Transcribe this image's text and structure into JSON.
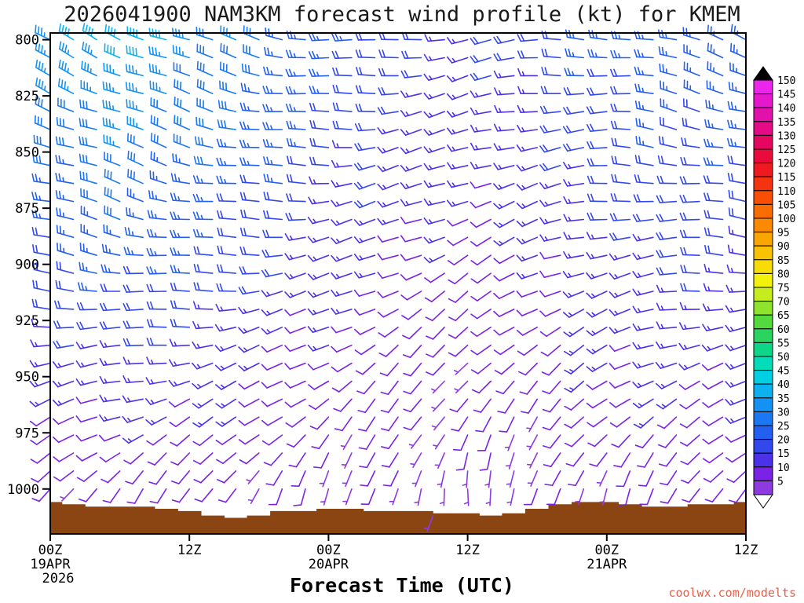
{
  "chart_data": {
    "type": "wind-barb-time-height",
    "title": "2026041900 NAM3KM forecast wind profile (kt) for KMEM",
    "xlabel": "Forecast Time (UTC)",
    "watermark": "coolwx.com/modelts",
    "units": "kt",
    "pressure_range_hpa": [
      797,
      1020
    ],
    "time_range_hours": [
      0,
      60
    ],
    "y_ticks": [
      800,
      825,
      850,
      875,
      900,
      925,
      950,
      975,
      1000
    ],
    "x_ticks": [
      {
        "hour": 0,
        "label": "00Z",
        "date": "19APR",
        "year": "2026"
      },
      {
        "hour": 12,
        "label": "12Z"
      },
      {
        "hour": 24,
        "label": "00Z",
        "date": "20APR"
      },
      {
        "hour": 36,
        "label": "12Z"
      },
      {
        "hour": 48,
        "label": "00Z",
        "date": "21APR"
      },
      {
        "hour": 60,
        "label": "12Z"
      }
    ],
    "colorbar": {
      "units": "kt",
      "levels": [
        5,
        10,
        15,
        20,
        25,
        30,
        35,
        40,
        45,
        50,
        55,
        60,
        65,
        70,
        75,
        80,
        85,
        90,
        95,
        100,
        105,
        110,
        115,
        120,
        125,
        130,
        135,
        140,
        145,
        150
      ],
      "colors": [
        "#8d3ae0",
        "#7a22e6",
        "#4b32e8",
        "#3348ec",
        "#2360f0",
        "#1b78f2",
        "#1492f4",
        "#0cb2f0",
        "#00cfe4",
        "#00ddb8",
        "#0ed689",
        "#2ad45e",
        "#55da3e",
        "#8ee32c",
        "#c6ec1d",
        "#f2f20d",
        "#f7dd05",
        "#f9c303",
        "#faa602",
        "#fa8a01",
        "#f96c01",
        "#f84f04",
        "#f43310",
        "#ee1a1f",
        "#e80b3c",
        "#e5075f",
        "#e30b86",
        "#e311ac",
        "#e518cd",
        "#ec25ec"
      ],
      "over_arrow_color": "#000000",
      "under_arrow_color": "#ffffff"
    },
    "grid": {
      "hours": [
        0,
        6,
        12,
        18,
        24,
        30,
        36,
        42,
        48,
        54,
        60
      ],
      "pressures": [
        800,
        825,
        850,
        875,
        900,
        925,
        950,
        975,
        1000
      ],
      "speed": [
        [
          35,
          40,
          35,
          30,
          25,
          20,
          15,
          20,
          25,
          25,
          25
        ],
        [
          32,
          36,
          32,
          28,
          22,
          18,
          15,
          18,
          22,
          24,
          25
        ],
        [
          28,
          32,
          28,
          25,
          20,
          15,
          13,
          15,
          20,
          22,
          22
        ],
        [
          25,
          28,
          25,
          22,
          18,
          15,
          12,
          14,
          18,
          20,
          20
        ],
        [
          22,
          25,
          22,
          20,
          15,
          12,
          10,
          12,
          15,
          18,
          18
        ],
        [
          18,
          20,
          18,
          15,
          12,
          10,
          10,
          10,
          14,
          15,
          15
        ],
        [
          13,
          15,
          15,
          12,
          10,
          9,
          8,
          10,
          12,
          13,
          13
        ],
        [
          10,
          12,
          12,
          10,
          9,
          8,
          8,
          8,
          10,
          11,
          11
        ],
        [
          8,
          10,
          10,
          8,
          7,
          6,
          5,
          7,
          8,
          9,
          9
        ]
      ],
      "direction": [
        [
          295,
          295,
          290,
          285,
          275,
          265,
          260,
          265,
          275,
          285,
          290
        ],
        [
          292,
          292,
          288,
          282,
          272,
          262,
          256,
          262,
          272,
          282,
          287
        ],
        [
          288,
          290,
          285,
          278,
          268,
          258,
          252,
          258,
          268,
          278,
          283
        ],
        [
          284,
          286,
          280,
          272,
          262,
          252,
          246,
          252,
          262,
          272,
          278
        ],
        [
          278,
          280,
          274,
          266,
          256,
          246,
          240,
          246,
          256,
          266,
          272
        ],
        [
          270,
          272,
          266,
          258,
          248,
          238,
          230,
          238,
          248,
          258,
          264
        ],
        [
          258,
          260,
          254,
          246,
          236,
          226,
          218,
          226,
          236,
          246,
          252
        ],
        [
          240,
          244,
          238,
          230,
          222,
          212,
          205,
          212,
          222,
          230,
          238
        ],
        [
          215,
          220,
          215,
          208,
          200,
          192,
          185,
          192,
          200,
          208,
          215
        ]
      ]
    },
    "terrain": {
      "color": "#8b4513",
      "surface_pressure_by_hour": [
        1006,
        1007,
        1008,
        1008,
        1008,
        1009,
        1010,
        1012,
        1013,
        1012,
        1010,
        1010,
        1009,
        1009,
        1010,
        1010,
        1010,
        1011,
        1011,
        1012,
        1011,
        1009,
        1007,
        1006,
        1006,
        1007,
        1008,
        1008,
        1007,
        1007,
        1006
      ]
    },
    "extra_barbs": [
      {
        "hour": 33,
        "pressure": 1012,
        "speed": 5,
        "direction": 200
      }
    ],
    "frame_color": "#000000",
    "watermark_color": "#e8604a"
  }
}
